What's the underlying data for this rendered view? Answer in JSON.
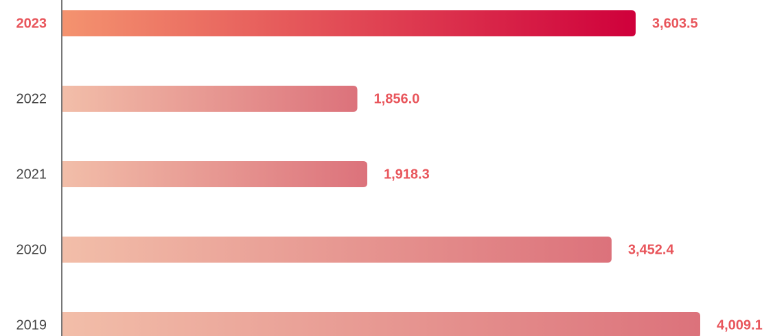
{
  "chart_data": {
    "type": "bar",
    "orientation": "horizontal",
    "categories": [
      "2023",
      "2022",
      "2021",
      "2020",
      "2019"
    ],
    "values": [
      3603.5,
      1856.0,
      1918.3,
      3452.4,
      4009.1
    ],
    "value_labels": [
      "3,603.5",
      "1,856.0",
      "1,918.3",
      "3,452.4",
      "4,009.1"
    ],
    "highlight_index": 0,
    "gradient": [
      "#f2bea9",
      "#dc727b"
    ],
    "highlight_gradient": [
      "#f4936f",
      "#cf003b"
    ],
    "label_color": "#e8555b"
  }
}
